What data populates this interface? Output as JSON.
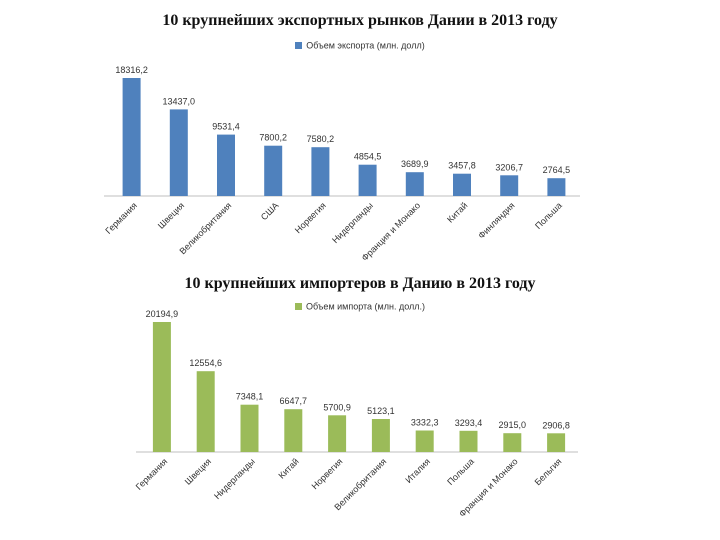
{
  "chart_data": [
    {
      "type": "bar",
      "title": "10 крупнейших экспортных рынков Дании в 2013 году",
      "legend_position": "top",
      "grid": false,
      "color": "#4f81bd",
      "categories": [
        "Германия",
        "Швеция",
        "Великобритания",
        "США",
        "Норвегия",
        "Нидерланды",
        "Франция и Монако",
        "Китай",
        "Финляндия",
        "Польша"
      ],
      "value_labels": [
        "18316,2",
        "13437,0",
        "9531,4",
        "7800,2",
        "7580,2",
        "4854,5",
        "3689,9",
        "3457,8",
        "3206,7",
        "2764,5"
      ],
      "series": [
        {
          "name": "Объем экспорта (млн. долл)",
          "values": [
            18316.2,
            13437.0,
            9531.4,
            7800.2,
            7580.2,
            4854.5,
            3689.9,
            3457.8,
            3206.7,
            2764.5
          ]
        }
      ]
    },
    {
      "type": "bar",
      "title": "10 крупнейших импортеров в Данию в 2013 году",
      "legend_position": "top",
      "grid": false,
      "color": "#9bbb59",
      "categories": [
        "Германия",
        "Швеция",
        "Нидерланды",
        "Китай",
        "Норвегия",
        "Великобритания",
        "Италия",
        "Польша",
        "Франция и Монако",
        "Бельгия"
      ],
      "value_labels": [
        "20194,9",
        "12554,6",
        "7348,1",
        "6647,7",
        "5700,9",
        "5123,1",
        "3332,3",
        "3293,4",
        "2915,0",
        "2906,8"
      ],
      "series": [
        {
          "name": "Объем импорта (млн. долл.)",
          "values": [
            20194.9,
            12554.6,
            7348.1,
            6647.7,
            5700.9,
            5123.1,
            3332.3,
            3293.4,
            2915.0,
            2906.8
          ]
        }
      ]
    }
  ]
}
